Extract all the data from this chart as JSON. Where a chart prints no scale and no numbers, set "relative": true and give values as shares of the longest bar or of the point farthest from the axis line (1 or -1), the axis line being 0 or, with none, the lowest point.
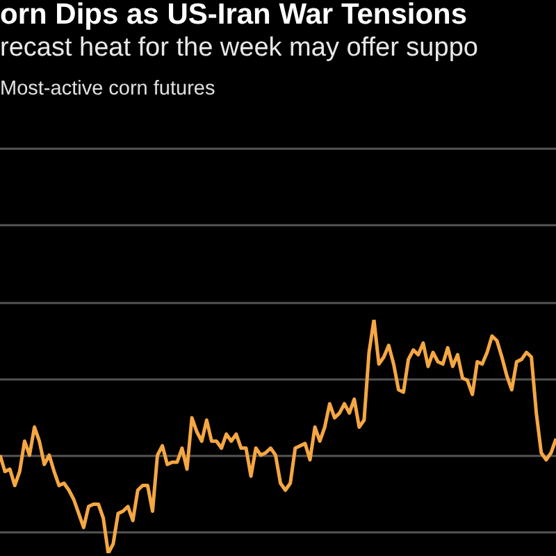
{
  "chart_data": {
    "type": "line",
    "title": "orn Dips as US-Iran War Tensions",
    "subtitle": "recast heat for the week may offer suppo",
    "annotations": [
      "Most-active corn futures"
    ],
    "relative": true,
    "grid": "y",
    "categories": [
      null,
      null,
      null,
      null,
      null,
      null,
      null,
      null,
      null,
      null,
      null,
      null,
      null,
      null,
      null,
      null,
      null,
      null,
      null,
      null,
      null,
      null,
      null,
      null,
      null,
      null,
      null,
      null,
      null,
      null,
      null,
      null,
      null,
      null,
      null,
      null,
      null,
      null,
      null,
      null,
      null,
      null,
      null,
      null,
      null,
      null,
      null,
      null,
      null,
      null,
      null,
      null,
      null,
      null,
      null,
      null,
      null,
      null,
      null,
      null,
      null,
      null,
      null,
      null,
      null,
      null,
      null,
      null,
      null,
      null,
      null,
      null,
      null,
      null,
      null,
      null,
      null,
      null,
      null,
      null,
      null,
      null,
      null,
      null,
      null,
      null,
      null,
      null,
      null,
      null,
      null,
      null,
      null,
      null,
      null,
      null,
      null,
      null,
      null,
      null,
      null,
      null,
      null,
      null,
      null,
      null,
      null,
      null,
      null,
      null,
      null,
      null,
      null,
      null
    ],
    "series": [
      {
        "color": "#f5a742",
        "values": [
          0.42,
          0.35,
          0.36,
          0.29,
          0.35,
          0.48,
          0.42,
          0.54,
          0.48,
          0.38,
          0.42,
          0.35,
          0.29,
          0.3,
          0.27,
          0.23,
          0.17,
          0.11,
          0.2,
          0.21,
          0.21,
          0.15,
          0,
          0.04,
          0.17,
          0.18,
          0.2,
          0.14,
          0.27,
          0.29,
          0.29,
          0.18,
          0.42,
          0.46,
          0.38,
          0.39,
          0.39,
          0.45,
          0.36,
          0.58,
          0.52,
          0.48,
          0.57,
          0.48,
          0.48,
          0.45,
          0.51,
          0.48,
          0.51,
          0.45,
          0.45,
          0.33,
          0.45,
          0.42,
          0.43,
          0.45,
          0.42,
          0.3,
          0.27,
          0.3,
          0.45,
          0.46,
          0.47,
          0.4,
          0.54,
          0.48,
          0.54,
          0.64,
          0.58,
          0.6,
          0.64,
          0.6,
          0.66,
          0.54,
          0.57,
          0.86,
          1,
          0.81,
          0.84,
          0.89,
          0.81,
          0.7,
          0.69,
          0.83,
          0.87,
          0.85,
          0.9,
          0.8,
          0.86,
          0.82,
          0.81,
          0.88,
          0.8,
          0.85,
          0.75,
          0.74,
          0.68,
          0.82,
          0.81,
          0.86,
          0.93,
          0.91,
          0.84,
          0.76,
          0.7,
          0.82,
          0.83,
          0.86,
          0.84,
          0.6,
          0.43,
          0.4,
          0.43,
          0.49
        ]
      }
    ]
  }
}
